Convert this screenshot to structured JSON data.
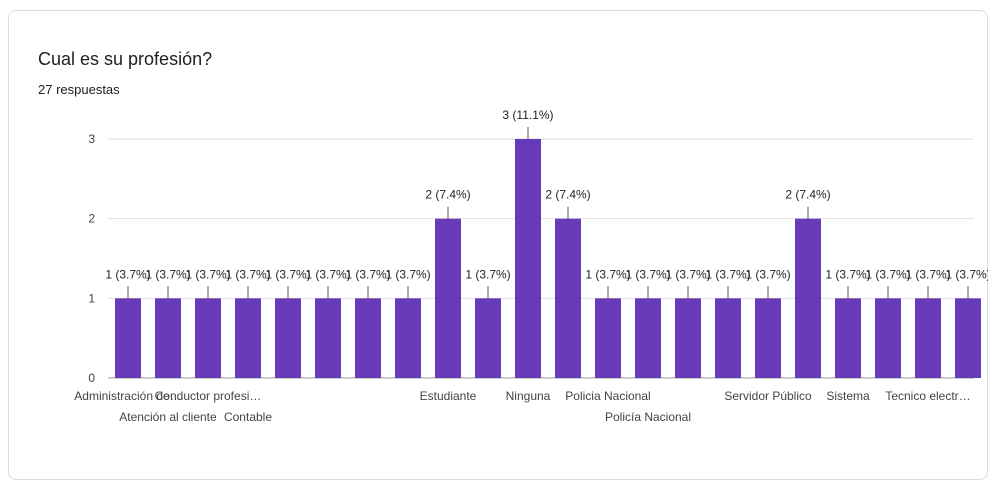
{
  "question": {
    "title": "Cual es su profesión?",
    "response_count": "27 respuestas"
  },
  "colors": {
    "bar": "#673ab7",
    "grid": "#e0e0e0",
    "axis_text": "#444444",
    "label_text": "#222222"
  },
  "chart_data": {
    "type": "bar",
    "title": "",
    "xlabel": "",
    "ylabel": "",
    "ylim": [
      0,
      3
    ],
    "y_ticks": [
      "0",
      "1",
      "2",
      "3"
    ],
    "grid": true,
    "categories": [
      "Administración de…",
      "Atención al cliente",
      "Conductor profesi…",
      "Contable",
      "",
      "",
      "",
      "",
      "Estudiante",
      "",
      "Ninguna",
      "",
      "Policia Nacional",
      "Policía Nacional",
      "",
      "",
      "Servidor Público",
      "",
      "Sistema",
      "",
      "Tecnico electr…",
      ""
    ],
    "values": [
      1,
      1,
      1,
      1,
      1,
      1,
      1,
      1,
      2,
      1,
      3,
      2,
      1,
      1,
      1,
      1,
      1,
      2,
      1,
      1,
      1,
      1
    ],
    "data_labels": [
      "1 (3.7%)",
      "1 (3.7%)",
      "1 (3.7%)",
      "1 (3.7%)",
      "1 (3.7%)",
      "1 (3.7%)",
      "1 (3.7%)",
      "1 (3.7%)",
      "2 (7.4%)",
      "1 (3.7%)",
      "3 (11.1%)",
      "2 (7.4%)",
      "1 (3.7%)",
      "1 (3.7%)",
      "1 (3.7%)",
      "1 (3.7%)",
      "1 (3.7%)",
      "2 (7.4%)",
      "1 (3.7%)",
      "1 (3.7%)",
      "1 (3.7%)",
      "1 (3.7%)"
    ]
  }
}
